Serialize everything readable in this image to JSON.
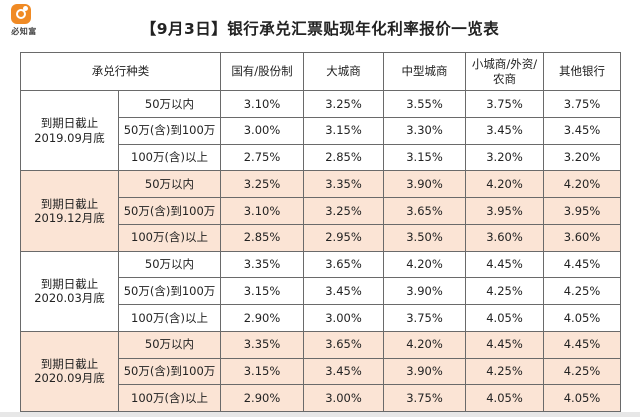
{
  "logo": {
    "text": "必知富"
  },
  "title": "【9月3日】银行承兑汇票贴现年化利率报价一览表",
  "header": {
    "type_label": "承兑行种类",
    "columns": [
      "国有/股份制",
      "大城商",
      "中型城商",
      "小城商/外资/农商",
      "其他银行"
    ]
  },
  "groups": [
    {
      "deadline": "到期日截止 2019.09月底",
      "shaded": false,
      "rows": [
        {
          "tier": "50万以内",
          "values": [
            "3.10%",
            "3.25%",
            "3.55%",
            "3.75%",
            "3.75%"
          ]
        },
        {
          "tier": "50万(含)到100万",
          "values": [
            "3.00%",
            "3.15%",
            "3.30%",
            "3.45%",
            "3.45%"
          ]
        },
        {
          "tier": "100万(含)以上",
          "values": [
            "2.75%",
            "2.85%",
            "3.15%",
            "3.20%",
            "3.20%"
          ]
        }
      ]
    },
    {
      "deadline": "到期日截止 2019.12月底",
      "shaded": true,
      "rows": [
        {
          "tier": "50万以内",
          "values": [
            "3.25%",
            "3.35%",
            "3.90%",
            "4.20%",
            "4.20%"
          ]
        },
        {
          "tier": "50万(含)到100万",
          "values": [
            "3.10%",
            "3.25%",
            "3.65%",
            "3.95%",
            "3.95%"
          ]
        },
        {
          "tier": "100万(含)以上",
          "values": [
            "2.85%",
            "2.95%",
            "3.50%",
            "3.60%",
            "3.60%"
          ]
        }
      ]
    },
    {
      "deadline": "到期日截止 2020.03月底",
      "shaded": false,
      "rows": [
        {
          "tier": "50万以内",
          "values": [
            "3.35%",
            "3.65%",
            "4.20%",
            "4.45%",
            "4.45%"
          ]
        },
        {
          "tier": "50万(含)到100万",
          "values": [
            "3.15%",
            "3.45%",
            "3.90%",
            "4.25%",
            "4.25%"
          ]
        },
        {
          "tier": "100万(含)以上",
          "values": [
            "2.90%",
            "3.00%",
            "3.75%",
            "4.05%",
            "4.05%"
          ]
        }
      ]
    },
    {
      "deadline": "到期日截止 2020.09月底",
      "shaded": true,
      "rows": [
        {
          "tier": "50万以内",
          "values": [
            "3.35%",
            "3.65%",
            "4.20%",
            "4.45%",
            "4.45%"
          ]
        },
        {
          "tier": "50万(含)到100万",
          "values": [
            "3.15%",
            "3.45%",
            "3.90%",
            "4.25%",
            "4.25%"
          ]
        },
        {
          "tier": "100万(含)以上",
          "values": [
            "2.90%",
            "3.00%",
            "3.75%",
            "4.05%",
            "4.05%"
          ]
        }
      ]
    }
  ]
}
